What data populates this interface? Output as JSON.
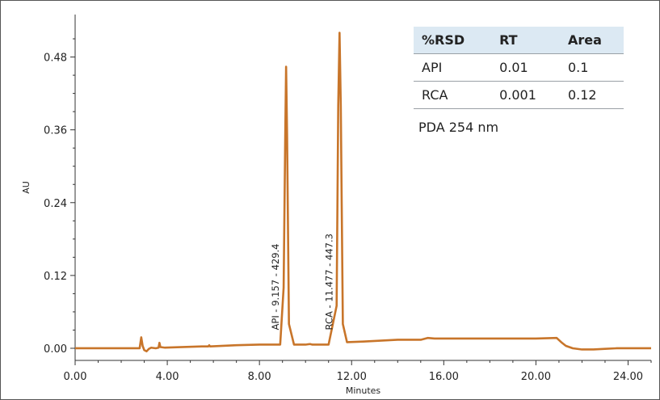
{
  "chart_data": {
    "type": "line",
    "title": "",
    "xlabel": "Minutes",
    "ylabel": "AU",
    "xlim": [
      0,
      25
    ],
    "ylim": [
      -0.02,
      0.55
    ],
    "x_ticks": [
      "0.00",
      "4.00",
      "8.00",
      "12.00",
      "16.00",
      "20.00",
      "24.00"
    ],
    "x_tick_values": [
      0,
      4,
      8,
      12,
      16,
      20,
      24
    ],
    "y_ticks": [
      "0.00",
      "0.12",
      "0.24",
      "0.36",
      "0.48"
    ],
    "y_tick_values": [
      0,
      0.12,
      0.24,
      0.36,
      0.48
    ],
    "line_color": "#c8752a",
    "grid": false,
    "series": [
      {
        "x": [
          0,
          2.8,
          2.87,
          2.93,
          3.0,
          3.1,
          3.2,
          3.3,
          3.5,
          3.62,
          3.66,
          3.7,
          3.9,
          5.5,
          5.78,
          5.82,
          5.86,
          7.0,
          8.0,
          8.9,
          9.05,
          9.12,
          9.157,
          9.2,
          9.28,
          9.5,
          10.0,
          10.2,
          10.3,
          11.0,
          11.35,
          11.42,
          11.477,
          11.53,
          11.62,
          11.8,
          12.5,
          14.0,
          15.0,
          15.3,
          15.6,
          16.0,
          18.0,
          20.0,
          20.9,
          21.1,
          21.3,
          21.6,
          22.0,
          22.5,
          23.0,
          23.5,
          25.0
        ],
        "y": [
          0.0,
          0.0,
          0.018,
          0.004,
          -0.003,
          -0.005,
          -0.001,
          0.001,
          0.0,
          0.001,
          0.009,
          0.002,
          0.001,
          0.003,
          0.003,
          0.005,
          0.003,
          0.005,
          0.006,
          0.006,
          0.1,
          0.35,
          0.464,
          0.35,
          0.04,
          0.006,
          0.006,
          0.007,
          0.006,
          0.006,
          0.07,
          0.4,
          0.52,
          0.4,
          0.04,
          0.01,
          0.011,
          0.014,
          0.014,
          0.017,
          0.016,
          0.016,
          0.016,
          0.016,
          0.017,
          0.01,
          0.004,
          0.0,
          -0.002,
          -0.002,
          -0.001,
          0.0,
          0.0
        ]
      }
    ],
    "annotations": [
      {
        "text": "API - 9.157 - 429.4",
        "x": 9.157
      },
      {
        "text": "RCA - 11.477 - 447.3",
        "x": 11.477
      }
    ]
  },
  "table": {
    "headers": [
      "%RSD",
      "RT",
      "Area"
    ],
    "rows": [
      [
        "API",
        "0.01",
        "0.1"
      ],
      [
        "RCA",
        "0.001",
        "0.12"
      ]
    ],
    "header_bg": "#dce9f3"
  },
  "note": "PDA 254 nm"
}
